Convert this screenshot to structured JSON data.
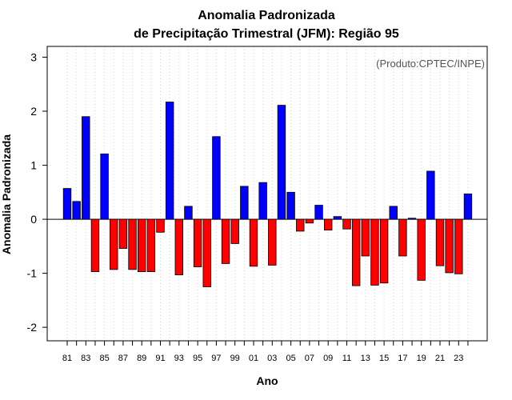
{
  "chart_data": {
    "type": "bar",
    "title": "Anomalia Padronizada",
    "subtitle": "de Precipitação Trimestral (JFM): Região 95",
    "xlabel": "Ano",
    "ylabel": "Anomalia Padronizada",
    "annotation": "(Produto:CPTEC/INPE)",
    "ylim": [
      -2.25,
      3.2
    ],
    "yticks": [
      -2,
      -1,
      0,
      1,
      2,
      3
    ],
    "ytick_labels": [
      "-2",
      "-1",
      "0",
      "1",
      "2",
      "3"
    ],
    "xtick_labels": [
      "81",
      "83",
      "85",
      "87",
      "89",
      "91",
      "93",
      "95",
      "97",
      "99",
      "01",
      "03",
      "05",
      "07",
      "09",
      "11",
      "13",
      "15",
      "17",
      "19",
      "21",
      "23"
    ],
    "grid": "vertical dotted",
    "colors": {
      "positive": "#0000ff",
      "negative": "#ff0000",
      "grid": "#d3d3d3",
      "annotation": "#555555"
    },
    "categories": [
      "1981",
      "1982",
      "1983",
      "1984",
      "1985",
      "1986",
      "1987",
      "1988",
      "1989",
      "1990",
      "1991",
      "1992",
      "1993",
      "1994",
      "1995",
      "1996",
      "1997",
      "1998",
      "1999",
      "2000",
      "2001",
      "2002",
      "2003",
      "2004",
      "2005",
      "2006",
      "2007",
      "2008",
      "2009",
      "2010",
      "2011",
      "2012",
      "2013",
      "2014",
      "2015",
      "2016",
      "2017",
      "2018",
      "2019",
      "2020",
      "2021",
      "2022",
      "2023",
      "2024"
    ],
    "values": [
      0.57,
      0.33,
      1.9,
      -0.97,
      1.21,
      -0.93,
      -0.54,
      -0.93,
      -0.97,
      -0.97,
      -0.24,
      2.17,
      -1.03,
      0.24,
      -0.88,
      -1.25,
      1.53,
      -0.82,
      -0.45,
      0.61,
      -0.87,
      0.68,
      -0.85,
      2.11,
      0.5,
      -0.22,
      -0.07,
      0.26,
      -0.2,
      0.05,
      -0.18,
      -1.23,
      -0.68,
      -1.22,
      -1.18,
      0.24,
      -0.68,
      0.02,
      -1.13,
      0.89,
      -0.86,
      -0.99,
      -1.01,
      0.47
    ]
  }
}
